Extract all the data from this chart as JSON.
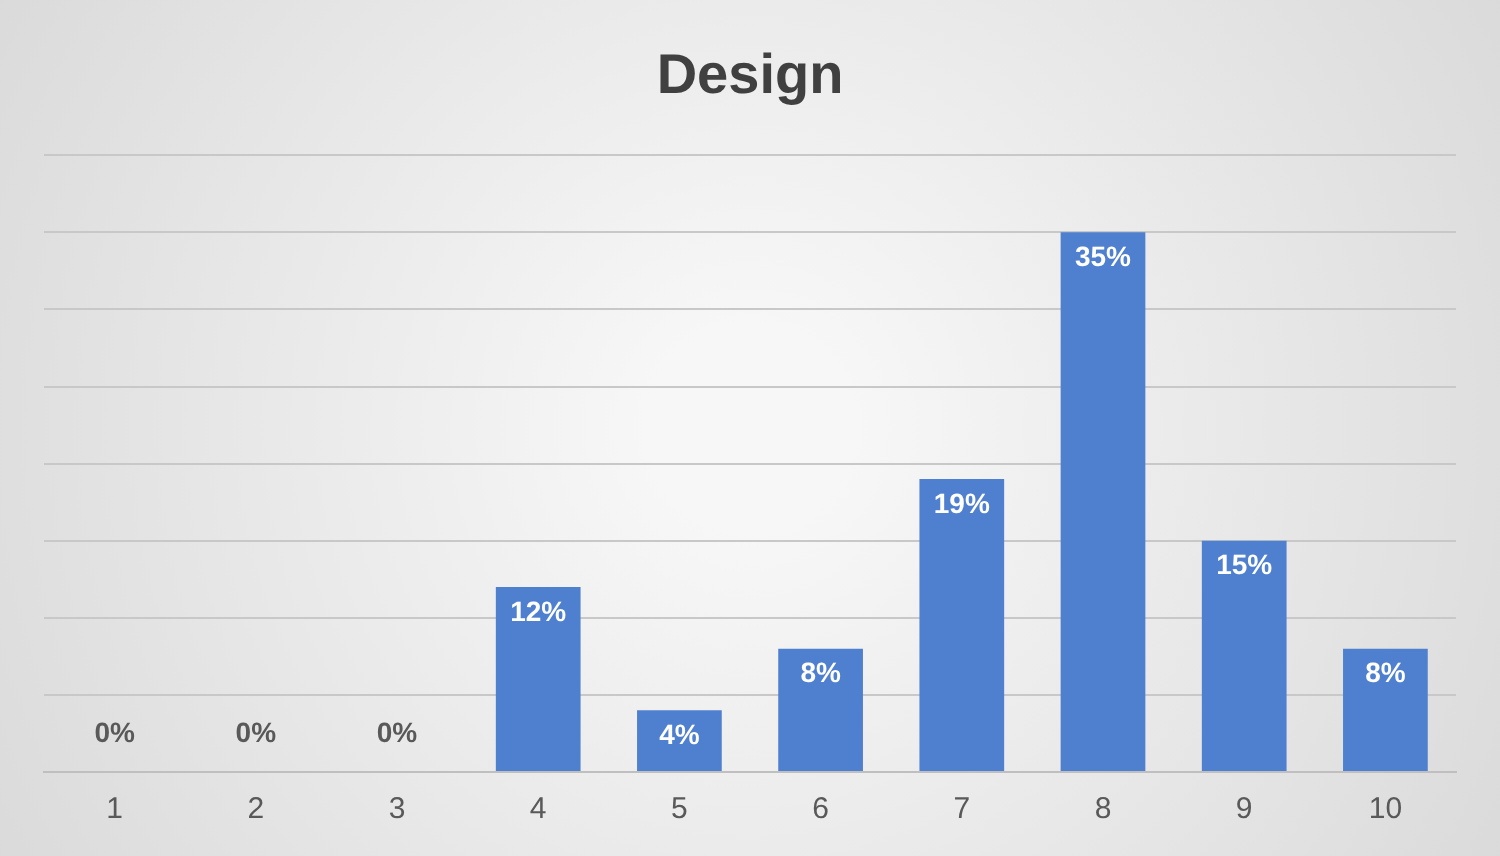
{
  "chart_data": {
    "type": "bar",
    "title": "Design",
    "categories": [
      "1",
      "2",
      "3",
      "4",
      "5",
      "6",
      "7",
      "8",
      "9",
      "10"
    ],
    "values": [
      0,
      0,
      0,
      12,
      4,
      8,
      19,
      35,
      15,
      8
    ],
    "value_labels": [
      "0%",
      "0%",
      "0%",
      "12%",
      "4%",
      "8%",
      "19%",
      "35%",
      "15%",
      "8%"
    ],
    "color": "#4f7fcf",
    "ylim": [
      0,
      40
    ],
    "yticks": [
      {
        "value": 0,
        "label": null
      },
      {
        "value": 5,
        "label": null
      },
      {
        "value": 10,
        "label": null
      },
      {
        "value": 15,
        "label": null
      },
      {
        "value": 20,
        "label": null
      },
      {
        "value": 25,
        "label": null
      },
      {
        "value": 30,
        "label": null
      },
      {
        "value": 35,
        "label": null
      },
      {
        "value": 40,
        "label": null
      }
    ],
    "grid": "y",
    "tick_labels": "x",
    "legend": false
  }
}
